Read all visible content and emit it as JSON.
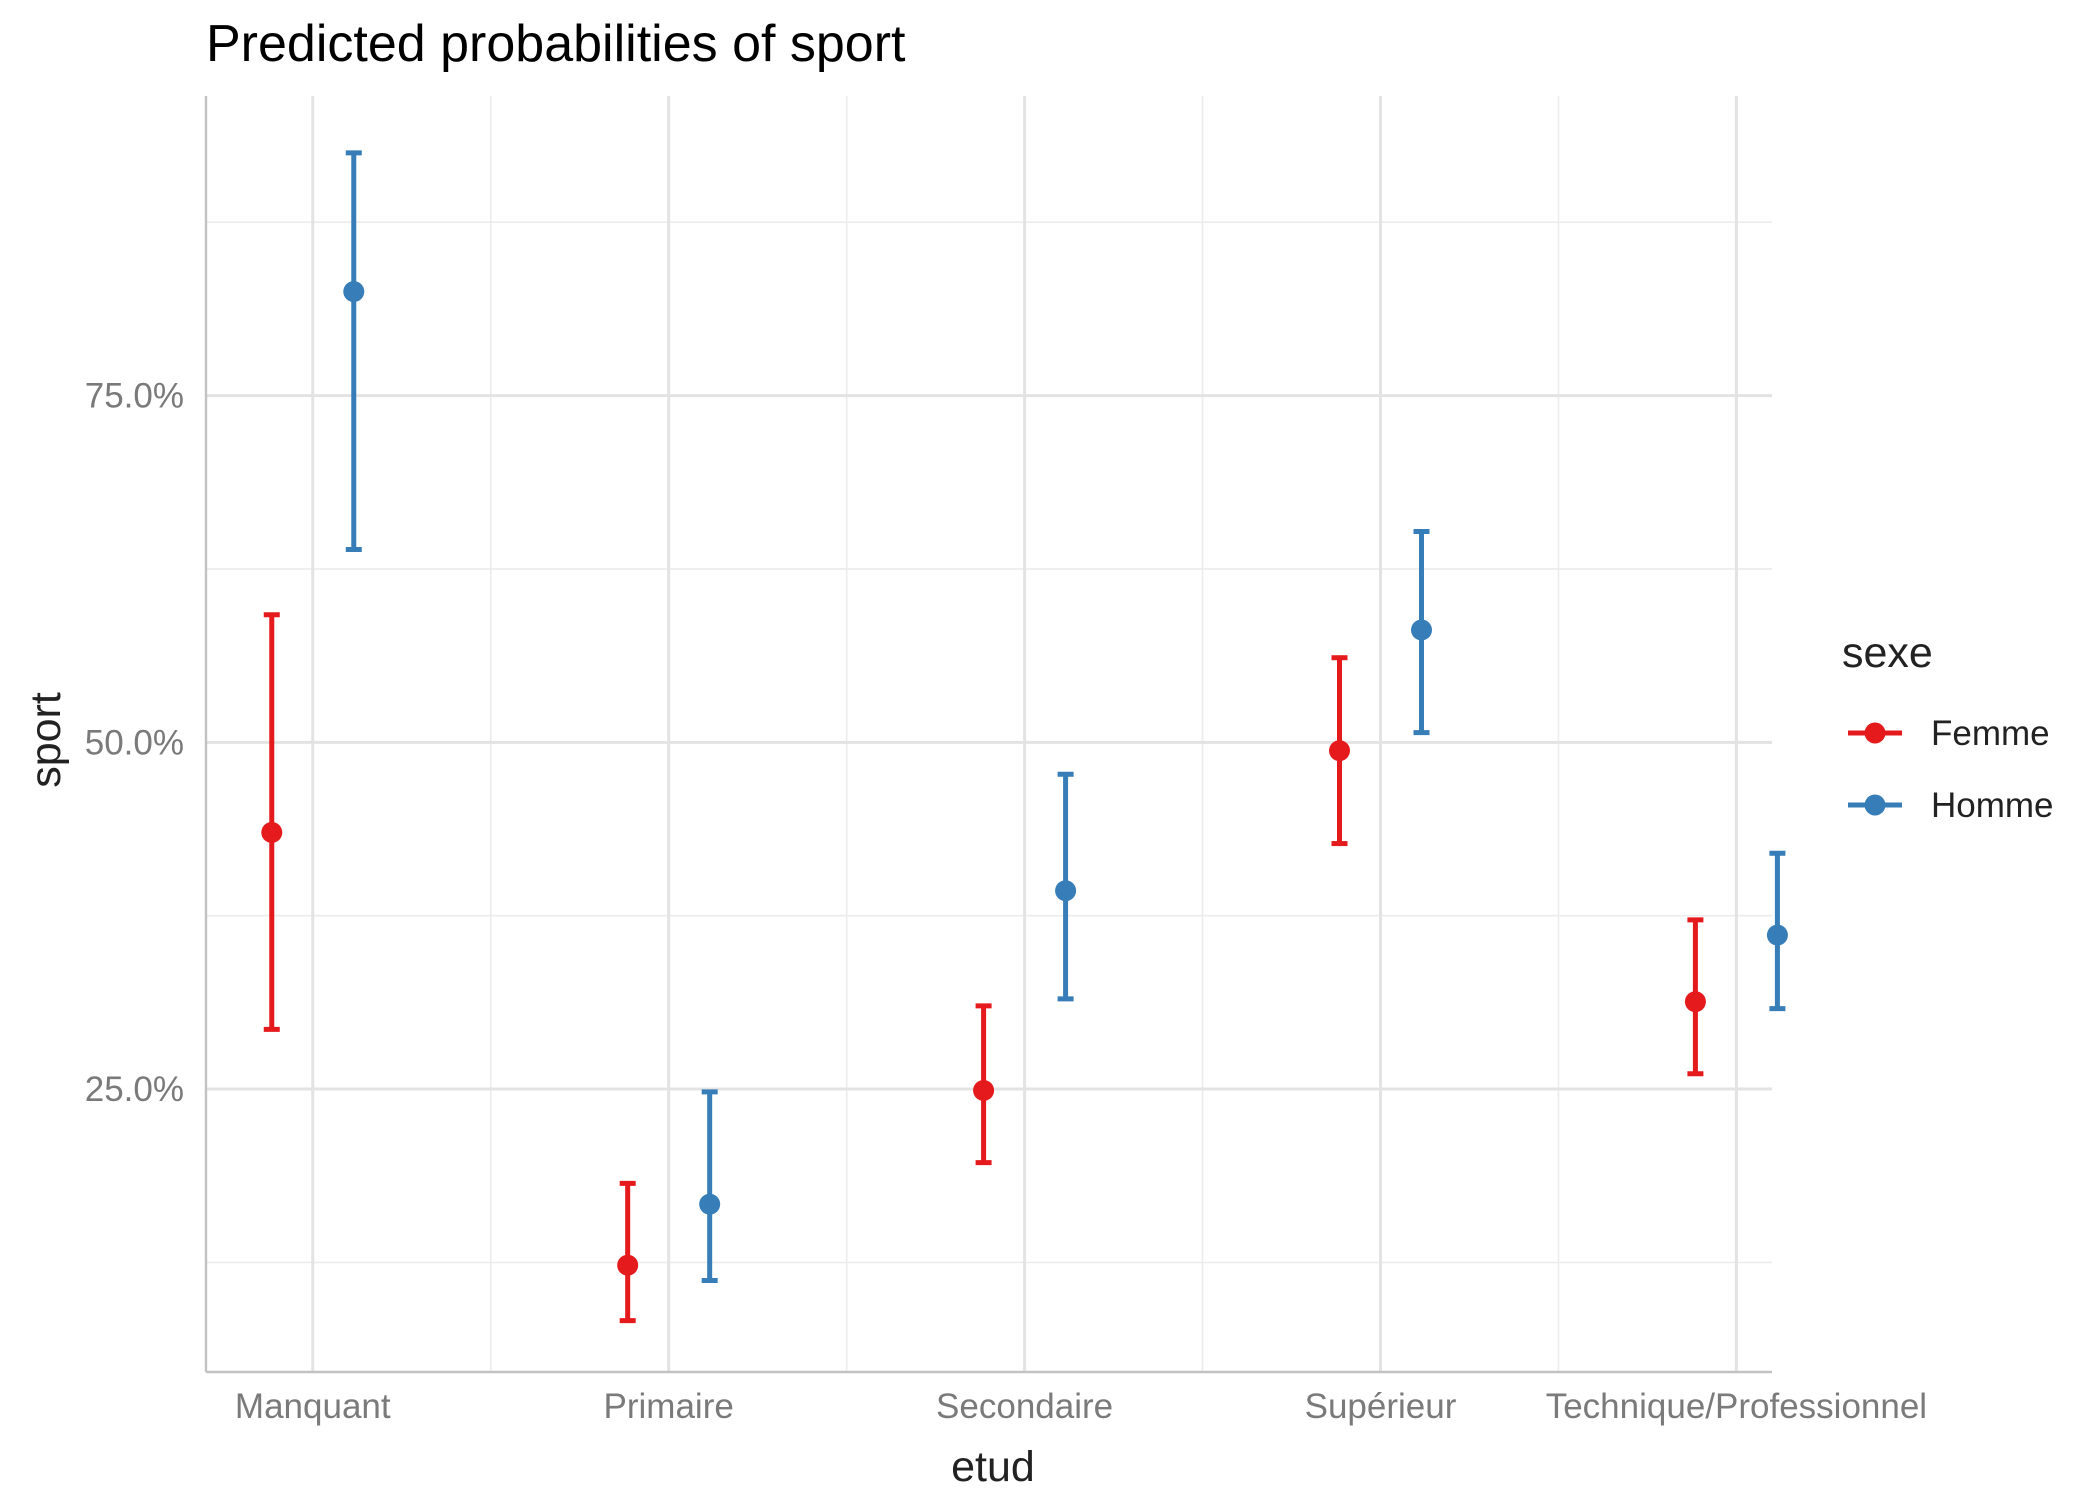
{
  "chart_data": {
    "type": "scatter",
    "title": "Predicted probabilities of sport",
    "xlabel": "etud",
    "ylabel": "sport",
    "categories": [
      "Manquant",
      "Primaire",
      "Secondaire",
      "Supérieur",
      "Technique/Professionnel"
    ],
    "y_ticks": [
      {
        "value": 0.25,
        "label": "25.0%"
      },
      {
        "value": 0.5,
        "label": "50.0%"
      },
      {
        "value": 0.75,
        "label": "75.0%"
      }
    ],
    "ylim": [
      0.046,
      0.966
    ],
    "grid": true,
    "legend": {
      "title": "sexe",
      "position": "right"
    },
    "series": [
      {
        "name": "Femme",
        "color": "#e41a1c",
        "values": [
          0.435,
          0.123,
          0.249,
          0.494,
          0.313
        ],
        "lower": [
          0.293,
          0.083,
          0.197,
          0.427,
          0.261
        ],
        "upper": [
          0.592,
          0.182,
          0.31,
          0.561,
          0.372
        ]
      },
      {
        "name": "Homme",
        "color": "#377eb8",
        "values": [
          0.825,
          0.167,
          0.393,
          0.581,
          0.361
        ],
        "lower": [
          0.639,
          0.112,
          0.315,
          0.507,
          0.308
        ],
        "upper": [
          0.925,
          0.248,
          0.477,
          0.652,
          0.42
        ]
      }
    ]
  }
}
